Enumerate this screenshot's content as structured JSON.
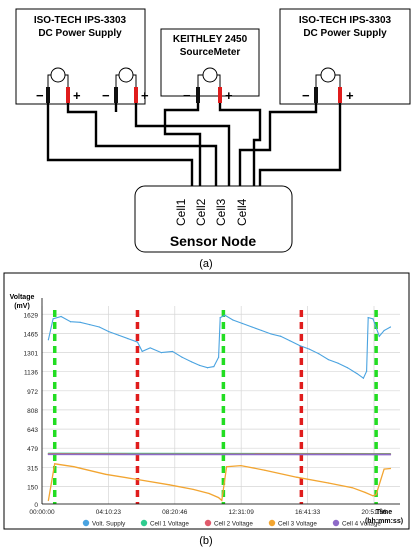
{
  "panel_a": {
    "supply_left": {
      "line1": "ISO-TECH IPS-3303",
      "line2": "DC Power Supply"
    },
    "sourcemeter": {
      "line1": "KEITHLEY 2450",
      "line2": "SourceMeter"
    },
    "supply_right": {
      "line1": "ISO-TECH IPS-3303",
      "line2": "DC Power Supply"
    },
    "minus": "−",
    "plus": "+",
    "sensor_node": "Sensor Node",
    "cells": [
      "Cell1",
      "Cell2",
      "Cell3",
      "Cell4"
    ],
    "caption": "(a)"
  },
  "panel_b": {
    "caption": "(b)",
    "colors": {
      "supply": "#4aa3e0",
      "cell1": "#2ecc8f",
      "cell2": "#e05a6b",
      "cell3": "#f2a531",
      "cell4": "#8e6ac8",
      "green_marker": "#22dd22",
      "red_marker": "#e01c1c"
    }
  },
  "chart_data": {
    "type": "line",
    "ylabel": "Voltage\n(mV)",
    "xlabel": "Time\n(hh:mm:ss)",
    "yticks": [
      0,
      150,
      315,
      479,
      643,
      808,
      972,
      1136,
      1301,
      1465,
      1629
    ],
    "ylim": [
      0,
      1700
    ],
    "xticks": [
      "00:00:00",
      "04:10:23",
      "08:20:46",
      "12:31:09",
      "16:41:33",
      "20:51:56"
    ],
    "xtick_hours": [
      0,
      4.173,
      8.346,
      12.519,
      16.693,
      20.866
    ],
    "xlim_hours": [
      0,
      22.5
    ],
    "grid": true,
    "legend": [
      "Volt. Supply",
      "Cell 1 Voltage",
      "Cell 2 Voltage",
      "Cell 3 Voltage",
      "Cell 4 Voltage"
    ],
    "legend_position": "bottom",
    "markers": {
      "green_hours": [
        0.8,
        11.4,
        21.0
      ],
      "red_hours": [
        6.0,
        16.3
      ]
    },
    "series": [
      {
        "name": "Volt. Supply",
        "x": [
          0.4,
          0.7,
          1.2,
          1.8,
          2.4,
          3.0,
          3.6,
          4.2,
          4.8,
          5.4,
          6.0,
          6.3,
          6.8,
          7.5,
          8.2,
          8.8,
          9.4,
          9.9,
          10.4,
          10.8,
          11.1,
          11.2,
          11.5,
          12.0,
          12.6,
          13.2,
          13.8,
          14.4,
          15.0,
          15.6,
          16.2,
          16.8,
          17.4,
          18.0,
          18.6,
          19.2,
          19.8,
          20.2,
          20.4,
          20.5,
          20.8,
          21.2,
          21.5,
          21.9
        ],
        "y": [
          1410,
          1590,
          1610,
          1565,
          1560,
          1540,
          1520,
          1480,
          1450,
          1420,
          1390,
          1310,
          1340,
          1300,
          1310,
          1260,
          1220,
          1190,
          1170,
          1180,
          1260,
          1600,
          1620,
          1580,
          1550,
          1520,
          1490,
          1460,
          1440,
          1400,
          1360,
          1330,
          1290,
          1240,
          1210,
          1170,
          1120,
          1080,
          1140,
          1600,
          1590,
          1440,
          1490,
          1520
        ]
      },
      {
        "name": "Cell 1 Voltage",
        "x": [
          0.4,
          21.9
        ],
        "y": [
          435,
          432
        ]
      },
      {
        "name": "Cell 2 Voltage",
        "x": [
          0.4,
          21.9
        ],
        "y": [
          430,
          428
        ]
      },
      {
        "name": "Cell 3 Voltage",
        "x": [
          0.4,
          0.8,
          2.0,
          4.0,
          6.0,
          8.0,
          9.5,
          10.5,
          11.1,
          11.3,
          11.6,
          12.5,
          14.0,
          16.0,
          18.0,
          19.5,
          20.3,
          20.8,
          21.0,
          21.5,
          21.9
        ],
        "y": [
          30,
          345,
          320,
          255,
          210,
          165,
          125,
          90,
          55,
          30,
          320,
          330,
          290,
          230,
          180,
          140,
          100,
          70,
          80,
          300,
          305
        ]
      },
      {
        "name": "Cell 4 Voltage",
        "x": [
          0.4,
          21.9
        ],
        "y": [
          425,
          423
        ]
      }
    ]
  }
}
